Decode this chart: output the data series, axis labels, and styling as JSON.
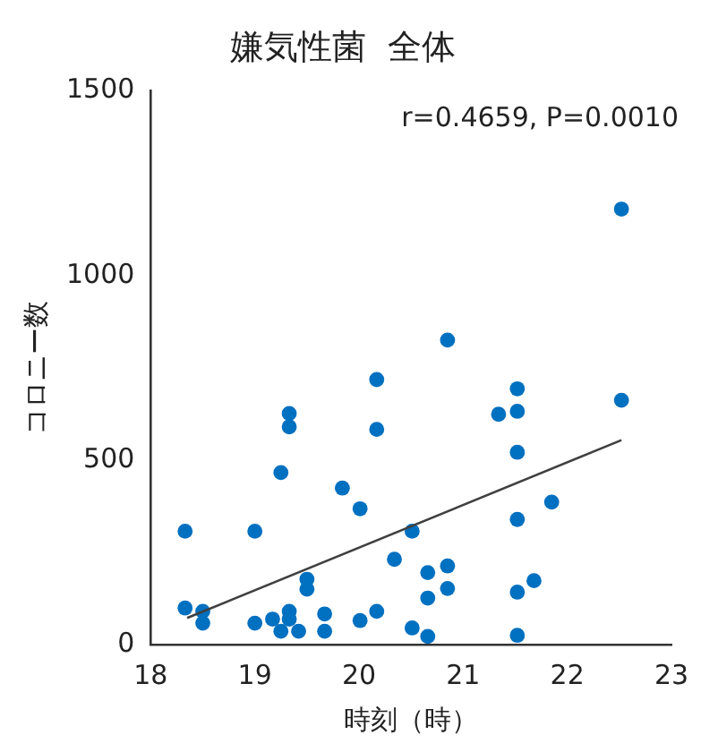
{
  "chart_data": {
    "type": "scatter",
    "title": "嫌気性菌  全体",
    "xlabel": "時刻（時）",
    "ylabel": "コロニー数",
    "annotations": [
      "r=0.4659, P=0.0010"
    ],
    "xlim": [
      18,
      23
    ],
    "xticks": [
      18,
      19,
      20,
      21,
      22,
      23
    ],
    "ylim": [
      0,
      1500
    ],
    "yticks": [
      0,
      500,
      1000,
      1500
    ],
    "grid": false,
    "legend": false,
    "marker": "circle",
    "series": [
      {
        "color": "#0070c0",
        "x": [
          18.33,
          18.33,
          18.5,
          18.5,
          19.0,
          19.0,
          19.17,
          19.25,
          19.33,
          19.33,
          19.33,
          19.33,
          19.25,
          19.42,
          19.5,
          19.5,
          19.67,
          19.67,
          19.84,
          20.01,
          20.01,
          20.17,
          20.17,
          20.17,
          20.34,
          20.51,
          20.51,
          20.66,
          20.66,
          20.66,
          20.85,
          20.85,
          20.85,
          21.34,
          21.52,
          21.52,
          21.52,
          21.52,
          21.52,
          21.52,
          21.68,
          21.85,
          22.52,
          22.52
        ],
        "values": [
          307,
          99,
          90,
          58,
          307,
          58,
          69,
          466,
          626,
          590,
          90,
          69,
          36,
          36,
          177,
          150,
          83,
          36,
          424,
          368,
          65,
          718,
          583,
          90,
          231,
          307,
          45,
          195,
          126,
          22,
          825,
          213,
          152,
          624,
          693,
          632,
          521,
          339,
          142,
          25,
          173,
          386,
          1180,
          662
        ]
      },
      {
        "type": "line",
        "marker": "none",
        "color": "#404040",
        "x": [
          18.35,
          22.52
        ],
        "values": [
          72,
          554
        ]
      }
    ]
  }
}
